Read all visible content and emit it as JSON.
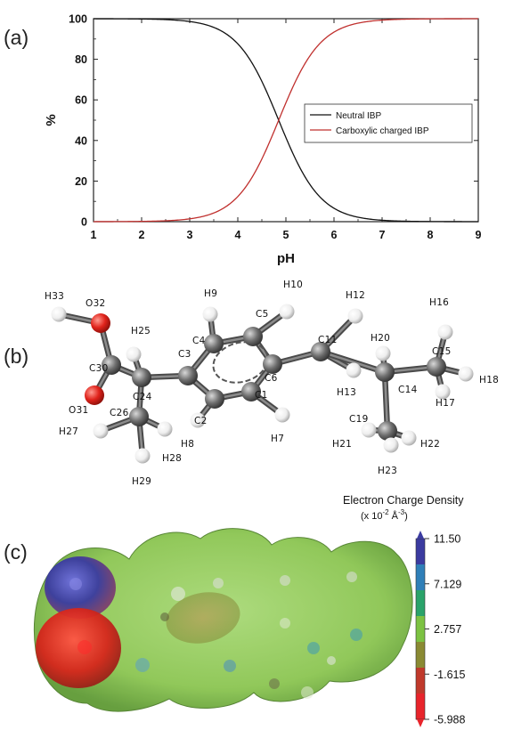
{
  "panels": {
    "a": "(a)",
    "b": "(b)",
    "c": "(c)"
  },
  "chart_data": {
    "type": "line",
    "xlabel": "pH",
    "ylabel": "%",
    "xlim": [
      1,
      9
    ],
    "ylim": [
      0,
      100
    ],
    "xticks": [
      1,
      2,
      3,
      4,
      5,
      6,
      7,
      8,
      9
    ],
    "yticks": [
      0,
      20,
      40,
      60,
      80,
      100
    ],
    "legend_position": "right-middle",
    "pKa": 4.85,
    "x": [
      1.0,
      1.5,
      2.0,
      2.5,
      3.0,
      3.5,
      4.0,
      4.25,
      4.5,
      4.75,
      4.85,
      5.0,
      5.25,
      5.5,
      6.0,
      6.5,
      7.0,
      7.5,
      8.0,
      8.5,
      9.0
    ],
    "series": [
      {
        "name": "Neutral IBP",
        "color": "#111111",
        "values": [
          100.0,
          100.0,
          99.9,
          99.6,
          98.6,
          95.7,
          87.6,
          79.9,
          69.1,
          55.7,
          50.0,
          41.5,
          28.5,
          18.3,
          6.6,
          2.2,
          0.7,
          0.2,
          0.1,
          0.0,
          0.0
        ]
      },
      {
        "name": "Carboxylic charged IBP",
        "color": "#c0302e",
        "values": [
          0.0,
          0.0,
          0.1,
          0.4,
          1.4,
          4.3,
          12.4,
          20.1,
          30.9,
          44.3,
          50.0,
          58.5,
          71.5,
          81.7,
          93.4,
          97.8,
          99.3,
          99.8,
          99.9,
          100.0,
          100.0
        ]
      }
    ]
  },
  "molecule": {
    "atoms": [
      {
        "id": "H33",
        "label": "H33",
        "type": "H"
      },
      {
        "id": "O32",
        "label": "O32",
        "type": "O"
      },
      {
        "id": "C30",
        "label": "C30",
        "type": "C"
      },
      {
        "id": "O31",
        "label": "O31",
        "type": "O"
      },
      {
        "id": "H25",
        "label": "H25",
        "type": "H"
      },
      {
        "id": "C24",
        "label": "C24",
        "type": "C"
      },
      {
        "id": "C26",
        "label": "C26",
        "type": "C"
      },
      {
        "id": "H27",
        "label": "H27",
        "type": "H"
      },
      {
        "id": "H28",
        "label": "H28",
        "type": "H"
      },
      {
        "id": "H29",
        "label": "H29",
        "type": "H"
      },
      {
        "id": "C3",
        "label": "C3",
        "type": "C"
      },
      {
        "id": "C4",
        "label": "C4",
        "type": "C"
      },
      {
        "id": "H9",
        "label": "H9",
        "type": "H"
      },
      {
        "id": "C5",
        "label": "C5",
        "type": "C"
      },
      {
        "id": "H10",
        "label": "H10",
        "type": "H"
      },
      {
        "id": "C6",
        "label": "C6",
        "type": "C"
      },
      {
        "id": "C1",
        "label": "C1",
        "type": "C"
      },
      {
        "id": "H7",
        "label": "H7",
        "type": "H"
      },
      {
        "id": "C2",
        "label": "C2",
        "type": "C"
      },
      {
        "id": "H8",
        "label": "H8",
        "type": "H"
      },
      {
        "id": "C11",
        "label": "C11",
        "type": "C"
      },
      {
        "id": "H12",
        "label": "H12",
        "type": "H"
      },
      {
        "id": "H13",
        "label": "H13",
        "type": "H"
      },
      {
        "id": "C14",
        "label": "C14",
        "type": "C"
      },
      {
        "id": "H20",
        "label": "H20",
        "type": "H"
      },
      {
        "id": "C15",
        "label": "C15",
        "type": "C"
      },
      {
        "id": "H16",
        "label": "H16",
        "type": "H"
      },
      {
        "id": "H17",
        "label": "H17",
        "type": "H"
      },
      {
        "id": "H18",
        "label": "H18",
        "type": "H"
      },
      {
        "id": "C19",
        "label": "C19",
        "type": "C"
      },
      {
        "id": "H21",
        "label": "H21",
        "type": "H"
      },
      {
        "id": "H22",
        "label": "H22",
        "type": "H"
      },
      {
        "id": "H23",
        "label": "H23",
        "type": "H"
      }
    ],
    "colors": {
      "C": "#6e6e6e",
      "O": "#e0231b",
      "H": "#f2f2f2"
    }
  },
  "colorbar": {
    "title": "Electron Charge Density",
    "unit_prefix": "(x 10",
    "unit_exp1": "-2",
    "unit_mid": " Å",
    "unit_exp2": "-3",
    "unit_suffix": ")",
    "ticks": [
      "11.50",
      "7.129",
      "2.757",
      "-1.615",
      "-5.988"
    ],
    "colors": [
      "#3b3ba0",
      "#2f7fb8",
      "#2aa36a",
      "#7cc242",
      "#8a8a33",
      "#c0392b",
      "#e8242b"
    ]
  }
}
